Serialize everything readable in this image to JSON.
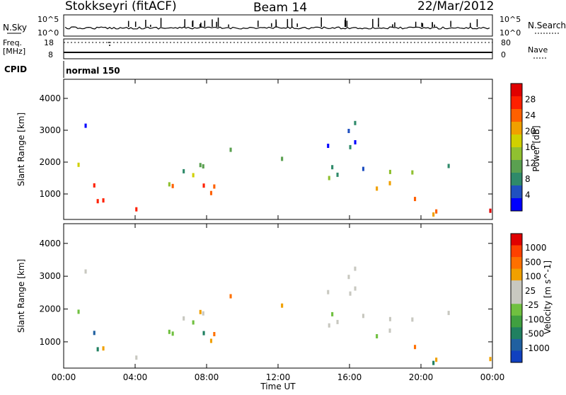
{
  "header": {
    "station": "Stokkseyri (fitACF)",
    "beam": "Beam 14",
    "date": "22/Mar/2012"
  },
  "noise_panel": {
    "left_label": "N.Sky",
    "right_label": "N.Search",
    "left_ticks": [
      "10^5",
      "10^0"
    ],
    "right_ticks": [
      "10^5",
      "10^0"
    ]
  },
  "freq_panel": {
    "left_label_1": "Freq.",
    "left_label_2": "[MHz]",
    "right_label": "Nave",
    "left_ticks": [
      "18",
      "8"
    ],
    "right_ticks": [
      "80",
      "0"
    ]
  },
  "cpid_panel": {
    "label": "CPID",
    "value": "normal 150"
  },
  "chart_data": [
    {
      "type": "heatmap",
      "title": "Power",
      "ylabel": "Slant Range [km]",
      "colorbar_label": "Power [dB]",
      "colorbar_ticks": [
        "28",
        "24",
        "20",
        "16",
        "12",
        "8",
        "4"
      ],
      "colors": [
        "#0000ff",
        "#2050c0",
        "#2f8a6a",
        "#5aa050",
        "#90c030",
        "#d0d000",
        "#f0a000",
        "#ff6000",
        "#ff2000",
        "#e00000"
      ],
      "y_ticks": [
        "4000",
        "3000",
        "2000",
        "1000"
      ],
      "ylim": [
        200,
        4600
      ]
    },
    {
      "type": "heatmap",
      "title": "Velocity",
      "ylabel": "Slant Range [km]",
      "xlabel": "Time UT",
      "colorbar_label": "Velocity [m s^-1]",
      "colorbar_ticks": [
        "1000",
        "500",
        "100",
        "25",
        "-25",
        "-100",
        "-500",
        "-1000"
      ],
      "colors": [
        "#1040c0",
        "#2060a0",
        "#208060",
        "#40a040",
        "#70c040",
        "#c8c8c0",
        "#c8c8c0",
        "#f0a000",
        "#ff7000",
        "#ff4000",
        "#e00000"
      ],
      "y_ticks": [
        "4000",
        "3000",
        "2000",
        "1000"
      ],
      "x_ticks": [
        "00:00",
        "04:00",
        "08:00",
        "12:00",
        "16:00",
        "20:00",
        "00:00"
      ],
      "ylim": [
        200,
        4600
      ]
    }
  ]
}
